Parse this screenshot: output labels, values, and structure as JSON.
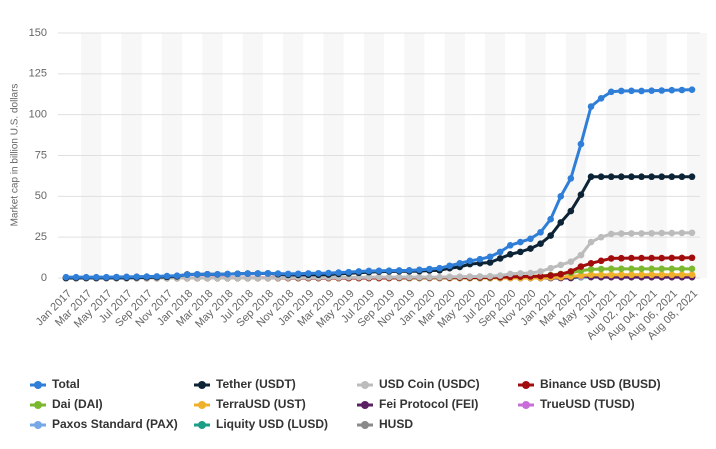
{
  "chart_data": {
    "type": "line",
    "y_label": "Market cap in billion U.S. dollars",
    "categories": [
      "Jan 2017",
      null,
      "Mar 2017",
      null,
      "May 2017",
      null,
      "Jul 2017",
      null,
      "Sep 2017",
      null,
      "Nov 2017",
      null,
      "Jan 2018",
      null,
      "Mar 2018",
      null,
      "May 2018",
      null,
      "Jul 2018",
      null,
      "Sep 2018",
      null,
      "Nov 2018",
      null,
      "Jan 2019",
      null,
      "Mar 2019",
      null,
      "May 2019",
      null,
      "Jul 2019",
      null,
      "Sep 2019",
      null,
      "Nov 2019",
      null,
      "Jan 2020",
      null,
      "Mar 2020",
      null,
      "May 2020",
      null,
      "Jul 2020",
      null,
      "Sep 2020",
      null,
      "Nov 2020",
      null,
      "Jan 2021",
      null,
      "Mar 2021",
      null,
      "May 2021",
      null,
      "Jul 2021",
      null,
      "Aug 02, 2021",
      null,
      "Aug 04, 2021",
      null,
      "Aug 06, 2021",
      null,
      "Aug 08, 2021"
    ],
    "ylim": [
      0,
      150
    ],
    "yticks": [
      0,
      25,
      50,
      75,
      100,
      125,
      150
    ],
    "grid": true,
    "series": [
      {
        "name": "Total",
        "color": "#2f7ed8",
        "values": [
          0.5,
          0.5,
          0.5,
          0.5,
          0.5,
          0.6,
          0.7,
          0.8,
          0.9,
          1.0,
          1.2,
          1.4,
          2.0,
          2.3,
          2.3,
          2.3,
          2.4,
          2.6,
          2.7,
          2.8,
          2.9,
          2.7,
          2.5,
          2.6,
          2.8,
          2.9,
          3.0,
          3.3,
          3.6,
          4.0,
          4.3,
          4.4,
          4.5,
          4.6,
          4.7,
          5.0,
          5.5,
          6.0,
          7.5,
          9.0,
          10.5,
          11.5,
          13,
          16,
          20,
          22,
          24,
          28,
          36,
          50,
          61,
          82,
          105,
          110,
          114,
          114.5,
          114.6,
          114.5,
          114.7,
          114.8,
          115,
          115.1,
          115.3
        ]
      },
      {
        "name": "Tether (USDT)",
        "color": "#0d2436",
        "values": [
          0.01,
          0.02,
          0.05,
          0.05,
          0.1,
          0.1,
          0.1,
          0.3,
          0.4,
          0.5,
          0.7,
          1.0,
          2.2,
          2.2,
          2.3,
          2.2,
          2.4,
          2.6,
          2.7,
          2.7,
          2.8,
          2.3,
          1.9,
          1.9,
          2.0,
          2.0,
          2.1,
          2.5,
          2.8,
          3.2,
          3.6,
          3.9,
          4.0,
          4.1,
          4.1,
          4.2,
          4.6,
          4.7,
          6.0,
          6.8,
          8.5,
          9.0,
          9.5,
          12,
          14.5,
          16,
          18,
          21,
          26,
          34,
          41,
          51,
          62,
          62,
          62,
          62,
          62,
          62,
          62,
          62,
          62,
          62,
          62
        ]
      },
      {
        "name": "USD Coin (USDC)",
        "color": "#bcbcbc",
        "values": [
          0,
          0,
          0,
          0,
          0,
          0,
          0,
          0,
          0,
          0,
          0,
          0,
          0,
          0,
          0,
          0,
          0,
          0,
          0,
          0,
          0,
          0.1,
          0.2,
          0.25,
          0.3,
          0.3,
          0.3,
          0.3,
          0.4,
          0.4,
          0.45,
          0.5,
          0.5,
          0.5,
          0.5,
          0.5,
          0.5,
          0.5,
          0.7,
          0.8,
          0.9,
          1.0,
          1.1,
          1.5,
          2.5,
          2.8,
          3.0,
          4.0,
          6,
          8,
          10,
          14,
          22,
          25,
          27,
          27.2,
          27.3,
          27.3,
          27.4,
          27.5,
          27.5,
          27.6,
          27.7
        ]
      },
      {
        "name": "Binance USD (BUSD)",
        "color": "#a10d0d",
        "values": [
          0,
          0,
          0,
          0,
          0,
          0,
          0,
          0,
          0,
          0,
          0,
          0,
          0,
          0,
          0,
          0,
          0,
          0,
          0,
          0,
          0,
          0,
          0,
          0,
          0,
          0,
          0,
          0,
          0,
          0,
          0,
          0,
          0.05,
          0.1,
          0.15,
          0.2,
          0.2,
          0.2,
          0.25,
          0.25,
          0.3,
          0.3,
          0.4,
          0.5,
          0.7,
          0.9,
          1.0,
          1.1,
          1.5,
          2.3,
          4,
          7,
          9,
          10.5,
          12,
          12.1,
          12.2,
          12.2,
          12.2,
          12.2,
          12.3,
          12.3,
          12.4
        ]
      },
      {
        "name": "Dai (DAI)",
        "color": "#7cb82f",
        "values": [
          0,
          0,
          0,
          0,
          0,
          0,
          0,
          0,
          0,
          0,
          0,
          0,
          0,
          0,
          0,
          0,
          0,
          0,
          0,
          0,
          0,
          0,
          0,
          0,
          0,
          0,
          0,
          0,
          0,
          0,
          0,
          0,
          0,
          0,
          0,
          0,
          0.1,
          0.1,
          0.1,
          0.1,
          0.1,
          0.1,
          0.2,
          0.4,
          0.8,
          0.9,
          1.0,
          1.2,
          1.8,
          2.5,
          3.2,
          4.5,
          5.3,
          5.5,
          5.6,
          5.6,
          5.6,
          5.6,
          5.6,
          5.6,
          5.6,
          5.6,
          5.6
        ]
      },
      {
        "name": "TerraUSD (UST)",
        "color": "#efb02c",
        "values": [
          0,
          0,
          0,
          0,
          0,
          0,
          0,
          0,
          0,
          0,
          0,
          0,
          0,
          0,
          0,
          0,
          0,
          0,
          0,
          0,
          0,
          0,
          0,
          0,
          0,
          0,
          0,
          0,
          0,
          0,
          0,
          0,
          0,
          0,
          0,
          0,
          0,
          0,
          0,
          0,
          0,
          0,
          0,
          0,
          0,
          0,
          0,
          0,
          0.3,
          0.5,
          1.0,
          1.5,
          2.0,
          1.9,
          1.9,
          2.0,
          2.0,
          2.0,
          2.0,
          2.0,
          2.0,
          2.0,
          2.0
        ]
      },
      {
        "name": "Fei Protocol (FEI)",
        "color": "#5b1f63",
        "values": [
          0,
          0,
          0,
          0,
          0,
          0,
          0,
          0,
          0,
          0,
          0,
          0,
          0,
          0,
          0,
          0,
          0,
          0,
          0,
          0,
          0,
          0,
          0,
          0,
          0,
          0,
          0,
          0,
          0,
          0,
          0,
          0,
          0,
          0,
          0,
          0,
          0,
          0,
          0,
          0,
          0,
          0,
          0,
          0,
          0,
          0,
          0,
          0,
          0,
          0,
          0,
          1.5,
          0.6,
          0.5,
          0.5,
          0.5,
          0.5,
          0.5,
          0.5,
          0.5,
          0.5,
          0.5,
          0.5
        ]
      },
      {
        "name": "TrueUSD (TUSD)",
        "color": "#c86dd7",
        "values": [
          0,
          0,
          0,
          0,
          0,
          0,
          0,
          0,
          0,
          0,
          0,
          0,
          0.05,
          0.1,
          0.15,
          0.2,
          0.25,
          0.1,
          0.1,
          0.15,
          0.2,
          0.2,
          0.2,
          0.2,
          0.2,
          0.2,
          0.2,
          0.2,
          0.2,
          0.2,
          0.2,
          0.2,
          0.2,
          0.2,
          0.2,
          0.2,
          0.2,
          0.2,
          0.2,
          0.2,
          0.2,
          0.2,
          0.3,
          0.4,
          0.4,
          0.4,
          0.4,
          0.3,
          0.3,
          0.4,
          0.5,
          0.9,
          1.2,
          1.3,
          1.4,
          1.4,
          1.4,
          1.4,
          1.4,
          1.4,
          1.4,
          1.4,
          1.4
        ]
      },
      {
        "name": "Paxos Standard (PAX)",
        "color": "#76a8e8",
        "values": [
          0,
          0,
          0,
          0,
          0,
          0,
          0,
          0,
          0,
          0,
          0,
          0,
          0,
          0,
          0,
          0,
          0,
          0,
          0,
          0,
          0.01,
          0.05,
          0.1,
          0.15,
          0.2,
          0.2,
          0.2,
          0.2,
          0.2,
          0.2,
          0.25,
          0.25,
          0.25,
          0.25,
          0.25,
          0.25,
          0.25,
          0.25,
          0.25,
          0.25,
          0.25,
          0.25,
          0.25,
          0.25,
          0.25,
          0.25,
          0.25,
          0.25,
          0.5,
          0.6,
          0.7,
          0.8,
          0.9,
          0.95,
          0.95,
          0.95,
          0.95,
          0.95,
          0.95,
          0.95,
          0.95,
          0.95,
          0.95
        ]
      },
      {
        "name": "Liquity USD (LUSD)",
        "color": "#1b9e86",
        "values": [
          0,
          0,
          0,
          0,
          0,
          0,
          0,
          0,
          0,
          0,
          0,
          0,
          0,
          0,
          0,
          0,
          0,
          0,
          0,
          0,
          0,
          0,
          0,
          0,
          0,
          0,
          0,
          0,
          0,
          0,
          0,
          0,
          0,
          0,
          0,
          0,
          0,
          0,
          0,
          0,
          0,
          0,
          0,
          0,
          0,
          0,
          0,
          0,
          0,
          0,
          0,
          0.5,
          0.6,
          0.6,
          0.7,
          0.7,
          0.7,
          0.7,
          0.7,
          0.7,
          0.7,
          0.7,
          0.7
        ]
      },
      {
        "name": "HUSD",
        "color": "#8a8a8a",
        "values": [
          0,
          0,
          0,
          0,
          0,
          0,
          0,
          0,
          0,
          0,
          0,
          0,
          0,
          0,
          0,
          0,
          0,
          0,
          0,
          0,
          0,
          0,
          0,
          0,
          0,
          0,
          0,
          0,
          0,
          0,
          0,
          0.05,
          0.1,
          0.1,
          0.1,
          0.1,
          0.1,
          0.1,
          0.15,
          0.15,
          0.2,
          0.2,
          0.2,
          0.25,
          0.3,
          0.3,
          0.3,
          0.3,
          0.3,
          0.4,
          0.5,
          0.5,
          0.6,
          0.6,
          0.6,
          0.6,
          0.6,
          0.6,
          0.6,
          0.6,
          0.6,
          0.6,
          0.6
        ]
      }
    ]
  }
}
